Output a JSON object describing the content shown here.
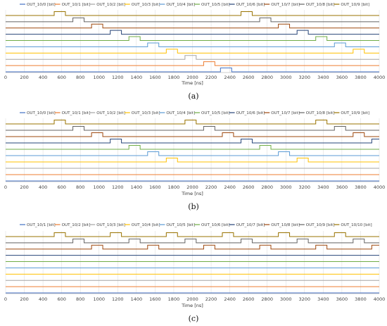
{
  "colors": {
    "palette": [
      "#4472C4",
      "#ED7D31",
      "#A5A5A5",
      "#FFC000",
      "#5B9BD5",
      "#70AD47",
      "#264478",
      "#9E480E",
      "#636363",
      "#997300"
    ],
    "grid": "#d9d9d9",
    "axis": "#bfbfbf"
  },
  "chart_data": [
    {
      "type": "line",
      "panel_label": "(a)",
      "xlabel": "Time [ns]",
      "xlim": [
        0,
        4000
      ],
      "x_ticks": [
        0,
        200,
        400,
        600,
        800,
        1000,
        1200,
        1400,
        1600,
        1800,
        2000,
        2200,
        2400,
        2600,
        2800,
        3000,
        3200,
        3400,
        3600,
        3800,
        4000
      ],
      "grid": true,
      "legend_position": "top",
      "series": [
        {
          "name": "OUT_10/0 [bit]",
          "pulses": [
            [
              2300,
              2420
            ]
          ]
        },
        {
          "name": "OUT_10/1 [bit]",
          "pulses": [
            [
              2120,
              2240
            ]
          ]
        },
        {
          "name": "OUT_10/2 [bit]",
          "pulses": [
            [
              1920,
              2040
            ]
          ]
        },
        {
          "name": "OUT_10/3 [bit]",
          "pulses": [
            [
              1720,
              1840
            ],
            [
              3720,
              3840
            ]
          ]
        },
        {
          "name": "OUT_10/4 [bit]",
          "pulses": [
            [
              1520,
              1640
            ],
            [
              3520,
              3640
            ]
          ]
        },
        {
          "name": "OUT_10/5 [bit]",
          "pulses": [
            [
              1320,
              1440
            ],
            [
              3320,
              3440
            ]
          ]
        },
        {
          "name": "OUT_10/6 [bit]",
          "pulses": [
            [
              1120,
              1240
            ],
            [
              3120,
              3240
            ]
          ]
        },
        {
          "name": "OUT_10/7 [bit]",
          "pulses": [
            [
              920,
              1040
            ],
            [
              2920,
              3040
            ]
          ]
        },
        {
          "name": "OUT_10/8 [bit]",
          "pulses": [
            [
              720,
              840
            ],
            [
              2720,
              2840
            ]
          ]
        },
        {
          "name": "OUT_10/9 [bit]",
          "pulses": [
            [
              520,
              640
            ],
            [
              2520,
              2640
            ]
          ]
        }
      ]
    },
    {
      "type": "line",
      "panel_label": "(b)",
      "xlabel": "Time [ns]",
      "xlim": [
        0,
        4000
      ],
      "x_ticks": [
        0,
        200,
        400,
        600,
        800,
        1000,
        1200,
        1400,
        1600,
        1800,
        2000,
        2200,
        2400,
        2600,
        2800,
        3000,
        3200,
        3400,
        3600,
        3800,
        4000
      ],
      "grid": true,
      "legend_position": "top",
      "series": [
        {
          "name": "OUT_10/0 [bit]",
          "pulses": []
        },
        {
          "name": "OUT_10/1 [bit]",
          "pulses": []
        },
        {
          "name": "OUT_10/2 [bit]",
          "pulses": []
        },
        {
          "name": "OUT_10/3 [bit]",
          "pulses": [
            [
              1720,
              1840
            ],
            [
              3120,
              3240
            ]
          ]
        },
        {
          "name": "OUT_10/4 [bit]",
          "pulses": [
            [
              1520,
              1640
            ],
            [
              2920,
              3040
            ]
          ]
        },
        {
          "name": "OUT_10/5 [bit]",
          "pulses": [
            [
              1320,
              1440
            ],
            [
              2720,
              2840
            ]
          ]
        },
        {
          "name": "OUT_10/6 [bit]",
          "pulses": [
            [
              1120,
              1240
            ],
            [
              2520,
              2640
            ],
            [
              3920,
              4000
            ]
          ]
        },
        {
          "name": "OUT_10/7 [bit]",
          "pulses": [
            [
              920,
              1040
            ],
            [
              2320,
              2440
            ],
            [
              3720,
              3840
            ]
          ]
        },
        {
          "name": "OUT_10/8 [bit]",
          "pulses": [
            [
              720,
              840
            ],
            [
              2120,
              2240
            ],
            [
              3520,
              3640
            ]
          ]
        },
        {
          "name": "OUT_10/9 [bit]",
          "pulses": [
            [
              520,
              640
            ],
            [
              1920,
              2040
            ],
            [
              3320,
              3440
            ]
          ]
        }
      ]
    },
    {
      "type": "line",
      "panel_label": "(c)",
      "xlabel": "Time [ns]",
      "xlim": [
        0,
        4000
      ],
      "x_ticks": [
        0,
        200,
        400,
        600,
        800,
        1000,
        1200,
        1400,
        1600,
        1800,
        2000,
        2200,
        2400,
        2600,
        2800,
        3000,
        3200,
        3400,
        3600,
        3800,
        4000
      ],
      "grid": true,
      "legend_position": "top",
      "series": [
        {
          "name": "OUT_10/1 [bit]",
          "pulses": []
        },
        {
          "name": "OUT_10/2 [bit]",
          "pulses": []
        },
        {
          "name": "OUT_10/3 [bit]",
          "pulses": []
        },
        {
          "name": "OUT_10/4 [bit]",
          "pulses": []
        },
        {
          "name": "OUT_10/5 [bit]",
          "pulses": []
        },
        {
          "name": "OUT_10/6 [bit]",
          "pulses": []
        },
        {
          "name": "OUT_10/7 [bit]",
          "pulses": []
        },
        {
          "name": "OUT_10/8 [bit]",
          "pulses": [
            [
              920,
              1040
            ],
            [
              1520,
              1640
            ],
            [
              2120,
              2240
            ],
            [
              2720,
              2840
            ],
            [
              3320,
              3440
            ],
            [
              3920,
              4000
            ]
          ]
        },
        {
          "name": "OUT_10/9 [bit]",
          "pulses": [
            [
              720,
              840
            ],
            [
              1320,
              1440
            ],
            [
              1920,
              2040
            ],
            [
              2520,
              2640
            ],
            [
              3120,
              3240
            ],
            [
              3720,
              3840
            ]
          ]
        },
        {
          "name": "OUT_10/10 [bit]",
          "pulses": [
            [
              520,
              640
            ],
            [
              1120,
              1240
            ],
            [
              1720,
              1840
            ],
            [
              2320,
              2440
            ],
            [
              2920,
              3040
            ],
            [
              3520,
              3640
            ]
          ]
        }
      ]
    }
  ]
}
